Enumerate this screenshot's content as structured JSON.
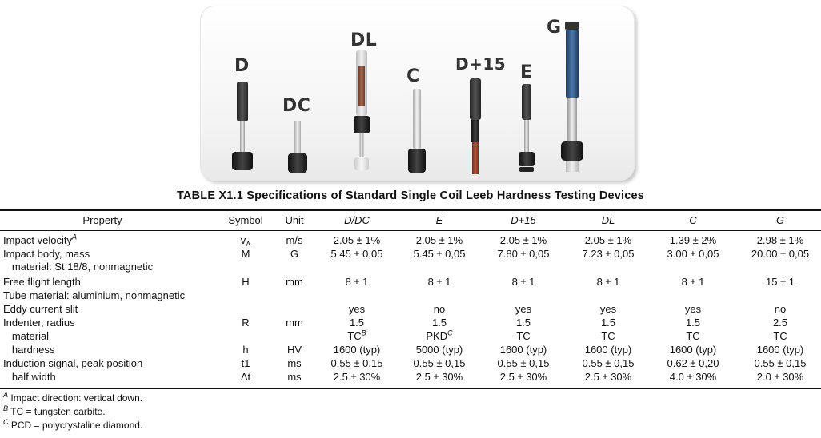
{
  "device_labels": [
    "D",
    "DC",
    "DL",
    "C",
    "D+15",
    "E",
    "G"
  ],
  "title": "TABLE X1.1  Specifications of Standard Single Coil Leeb Hardness Testing Devices",
  "headers": [
    "Property",
    "Symbol",
    "Unit",
    "D/DC",
    "E",
    "D+15",
    "DL",
    "C",
    "G"
  ],
  "rows": [
    {
      "property": "Impact velocity",
      "sup": "A",
      "symbol": "v",
      "symbol_sub": "A",
      "unit": "m/s",
      "values": [
        "2.05 ± 1%",
        "2.05 ± 1%",
        "2.05 ± 1%",
        "2.05 ± 1%",
        "1.39 ± 2%",
        "2.98 ± 1%"
      ]
    },
    {
      "property": "Impact body, mass",
      "symbol": "M",
      "unit": "G",
      "values": [
        "5.45 ± 0,05",
        "5.45 ± 0,05",
        "7.80 ± 0,05",
        "7.23 ± 0,05",
        "3.00 ± 0,05",
        "20.00 ± 0,05"
      ]
    },
    {
      "property": "   material: St 18/8, nonmagnetic",
      "symbol": "",
      "unit": "",
      "values": [
        "",
        "",
        "",
        "",
        "",
        ""
      ]
    },
    {
      "property": "Free flight length",
      "symbol": "H",
      "unit": "mm",
      "values": [
        "8 ± 1",
        "8 ± 1",
        "8 ± 1",
        "8 ± 1",
        "8 ± 1",
        "15 ± 1"
      ]
    },
    {
      "property": "Tube material: aluminium, nonmagnetic",
      "symbol": "",
      "unit": "",
      "values": [
        "",
        "",
        "",
        "",
        "",
        ""
      ]
    },
    {
      "property": "Eddy current slit",
      "symbol": "",
      "unit": "",
      "values": [
        "yes",
        "no",
        "yes",
        "yes",
        "yes",
        "no"
      ]
    },
    {
      "property": "Indenter, radius",
      "symbol": "R",
      "unit": "mm",
      "values": [
        "1.5",
        "1.5",
        "1.5",
        "1.5",
        "1.5",
        "2.5"
      ]
    },
    {
      "property": "   material",
      "symbol": "",
      "unit": "",
      "values": [
        "TC",
        "PKD",
        "TC",
        "TC",
        "TC",
        "TC"
      ]
    },
    {
      "property": "   hardness",
      "symbol": "h",
      "unit": "HV",
      "values": [
        "1600 (typ)",
        "5000 (typ)",
        "1600 (typ)",
        "1600 (typ)",
        "1600 (typ)",
        "1600 (typ)"
      ]
    },
    {
      "property": "Induction signal, peak position",
      "symbol": "t1",
      "unit": "ms",
      "values": [
        "0.55 ± 0,15",
        "0.55 ± 0,15",
        "0.55 ± 0,15",
        "0.55 ± 0,15",
        "0.62 ± 0,20",
        "0.55 ± 0,15"
      ]
    },
    {
      "property": "   half width",
      "symbol": "Δt",
      "unit": "ms",
      "values": [
        "2.5 ± 30%",
        "2.5 ± 30%",
        "2.5 ± 30%",
        "2.5 ± 30%",
        "4.0 ± 30%",
        "2.0 ± 30%"
      ]
    }
  ],
  "material_sups": [
    "B",
    "C"
  ],
  "footnotes": [
    {
      "mark": "A",
      "text": "Impact direction: vertical down."
    },
    {
      "mark": "B",
      "text": "TC = tungsten carbite."
    },
    {
      "mark": "C",
      "text": "PCD = polycrystaline diamond."
    }
  ]
}
